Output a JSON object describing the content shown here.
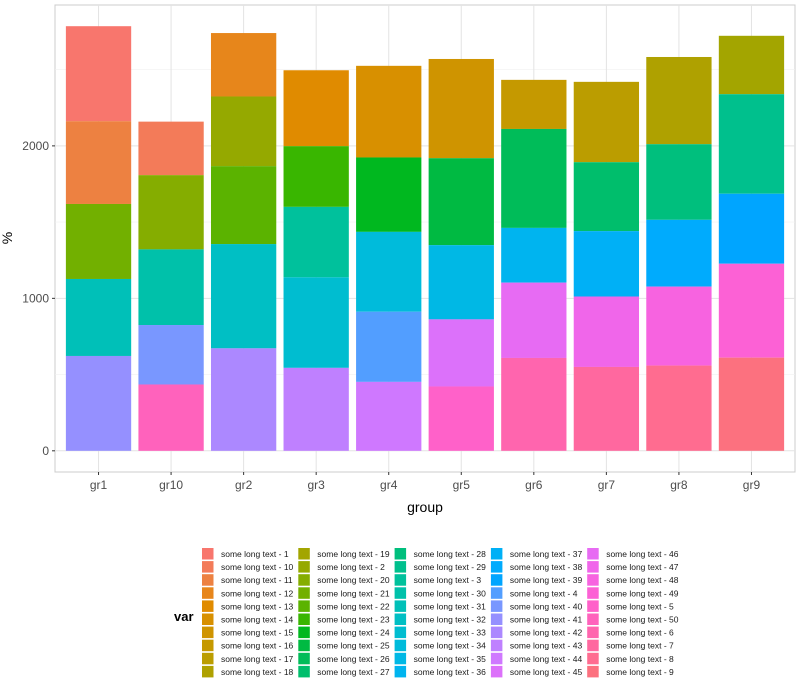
{
  "chart_data": {
    "type": "bar",
    "stacked": true,
    "title": "",
    "xlabel": "group",
    "ylabel": "%",
    "ylim": [
      -139,
      2924
    ],
    "yticks": [
      0,
      1000,
      2000
    ],
    "grid": true,
    "legend_position": "bottom",
    "legend": {
      "title": "var",
      "prefix": "some long text - ",
      "levels": [
        "1",
        "10",
        "11",
        "12",
        "13",
        "14",
        "15",
        "16",
        "17",
        "18",
        "19",
        "2",
        "20",
        "21",
        "22",
        "23",
        "24",
        "25",
        "26",
        "27",
        "28",
        "29",
        "3",
        "30",
        "31",
        "32",
        "33",
        "34",
        "35",
        "36",
        "37",
        "38",
        "39",
        "4",
        "40",
        "41",
        "42",
        "43",
        "44",
        "45",
        "46",
        "47",
        "48",
        "49",
        "5",
        "50",
        "6",
        "7",
        "8",
        "9"
      ]
    },
    "categories": [
      "gr1",
      "gr10",
      "gr2",
      "gr3",
      "gr4",
      "gr5",
      "gr6",
      "gr7",
      "gr8",
      "gr9"
    ],
    "stacks": [
      {
        "group": "gr1",
        "segments": [
          {
            "var": "1",
            "value": 623
          },
          {
            "var": "11",
            "value": 543
          },
          {
            "var": "21",
            "value": 492
          },
          {
            "var": "31",
            "value": 505
          },
          {
            "var": "41",
            "value": 622
          }
        ]
      },
      {
        "group": "gr10",
        "segments": [
          {
            "var": "10",
            "value": 351
          },
          {
            "var": "20",
            "value": 487
          },
          {
            "var": "30",
            "value": 496
          },
          {
            "var": "40",
            "value": 390
          },
          {
            "var": "50",
            "value": 435
          }
        ]
      },
      {
        "group": "gr2",
        "segments": [
          {
            "var": "12",
            "value": 416
          },
          {
            "var": "2",
            "value": 457
          },
          {
            "var": "22",
            "value": 511
          },
          {
            "var": "32",
            "value": 684
          },
          {
            "var": "42",
            "value": 672
          }
        ]
      },
      {
        "group": "gr3",
        "segments": [
          {
            "var": "13",
            "value": 498
          },
          {
            "var": "23",
            "value": 398
          },
          {
            "var": "3",
            "value": 462
          },
          {
            "var": "33",
            "value": 594
          },
          {
            "var": "43",
            "value": 544
          }
        ]
      },
      {
        "group": "gr4",
        "segments": [
          {
            "var": "14",
            "value": 601
          },
          {
            "var": "24",
            "value": 488
          },
          {
            "var": "34",
            "value": 524
          },
          {
            "var": "4",
            "value": 460
          },
          {
            "var": "44",
            "value": 452
          }
        ]
      },
      {
        "group": "gr5",
        "segments": [
          {
            "var": "15",
            "value": 651
          },
          {
            "var": "25",
            "value": 570
          },
          {
            "var": "35",
            "value": 487
          },
          {
            "var": "45",
            "value": 440
          },
          {
            "var": "5",
            "value": 422
          }
        ]
      },
      {
        "group": "gr6",
        "segments": [
          {
            "var": "16",
            "value": 322
          },
          {
            "var": "26",
            "value": 649
          },
          {
            "var": "36",
            "value": 359
          },
          {
            "var": "46",
            "value": 494
          },
          {
            "var": "6",
            "value": 609
          }
        ]
      },
      {
        "group": "gr7",
        "segments": [
          {
            "var": "17",
            "value": 527
          },
          {
            "var": "27",
            "value": 452
          },
          {
            "var": "37",
            "value": 429
          },
          {
            "var": "47",
            "value": 462
          },
          {
            "var": "7",
            "value": 550
          }
        ]
      },
      {
        "group": "gr8",
        "segments": [
          {
            "var": "18",
            "value": 572
          },
          {
            "var": "28",
            "value": 496
          },
          {
            "var": "38",
            "value": 438
          },
          {
            "var": "48",
            "value": 518
          },
          {
            "var": "8",
            "value": 559
          }
        ]
      },
      {
        "group": "gr9",
        "segments": [
          {
            "var": "19",
            "value": 383
          },
          {
            "var": "29",
            "value": 653
          },
          {
            "var": "39",
            "value": 459
          },
          {
            "var": "49",
            "value": 616
          },
          {
            "var": "9",
            "value": 611
          }
        ]
      }
    ]
  }
}
